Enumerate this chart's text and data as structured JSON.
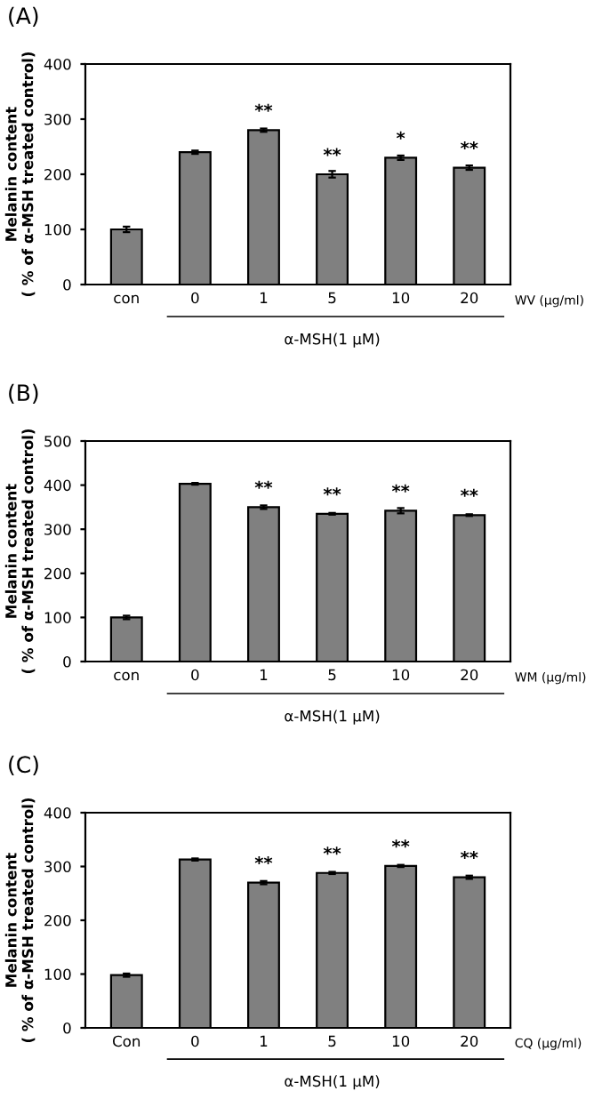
{
  "chart_data": [
    {
      "type": "bar",
      "title": "(A)",
      "ylabel": "Melanin content\n( % of α-MSH treated control)",
      "xlabel": "α-MSH(1 μM)",
      "categories": [
        "con",
        "0",
        "1",
        "5",
        "10",
        "20"
      ],
      "values": [
        100,
        240,
        280,
        200,
        230,
        212
      ],
      "errors": [
        5,
        3,
        3,
        6,
        4,
        4
      ],
      "color": "#808080",
      "ylim": [
        0,
        400
      ],
      "yticks": [
        0,
        100,
        200,
        300,
        400
      ],
      "grid": false,
      "legend": false,
      "annotations": [
        "WV (μg/ml)",
        {
          "text": "**",
          "x": "1",
          "y": 280
        },
        {
          "text": "**",
          "x": "5",
          "y": 200
        },
        {
          "text": "*",
          "x": "10",
          "y": 230
        },
        {
          "text": "**",
          "x": "20",
          "y": 212
        }
      ]
    },
    {
      "type": "bar",
      "title": "(B)",
      "ylabel": "Melanin content\n( % of α-MSH treated control)",
      "xlabel": "α-MSH(1 μM)",
      "categories": [
        "con",
        "0",
        "1",
        "5",
        "10",
        "20"
      ],
      "values": [
        100,
        403,
        350,
        335,
        342,
        332
      ],
      "errors": [
        4,
        2,
        4,
        2,
        6,
        2
      ],
      "color": "#808080",
      "ylim": [
        0,
        500
      ],
      "yticks": [
        0,
        100,
        200,
        300,
        400,
        500
      ],
      "grid": false,
      "legend": false,
      "annotations": [
        "WM (μg/ml)",
        {
          "text": "**",
          "x": "1",
          "y": 350
        },
        {
          "text": "**",
          "x": "5",
          "y": 335
        },
        {
          "text": "**",
          "x": "10",
          "y": 342
        },
        {
          "text": "**",
          "x": "20",
          "y": 332
        }
      ]
    },
    {
      "type": "bar",
      "title": "(C)",
      "ylabel": "Melanin content\n( % of α-MSH treated control)",
      "xlabel": "α-MSH(1 μM)",
      "categories": [
        "Con",
        "0",
        "1",
        "5",
        "10",
        "20"
      ],
      "values": [
        98,
        313,
        270,
        288,
        301,
        280
      ],
      "errors": [
        3,
        2,
        3,
        2,
        2,
        3
      ],
      "color": "#808080",
      "ylim": [
        0,
        400
      ],
      "yticks": [
        0,
        100,
        200,
        300,
        400
      ],
      "grid": false,
      "legend": false,
      "annotations": [
        "CQ (μg/ml)",
        {
          "text": "**",
          "x": "1",
          "y": 270
        },
        {
          "text": "**",
          "x": "5",
          "y": 288
        },
        {
          "text": "**",
          "x": "10",
          "y": 301
        },
        {
          "text": "**",
          "x": "20",
          "y": 280
        }
      ]
    }
  ]
}
